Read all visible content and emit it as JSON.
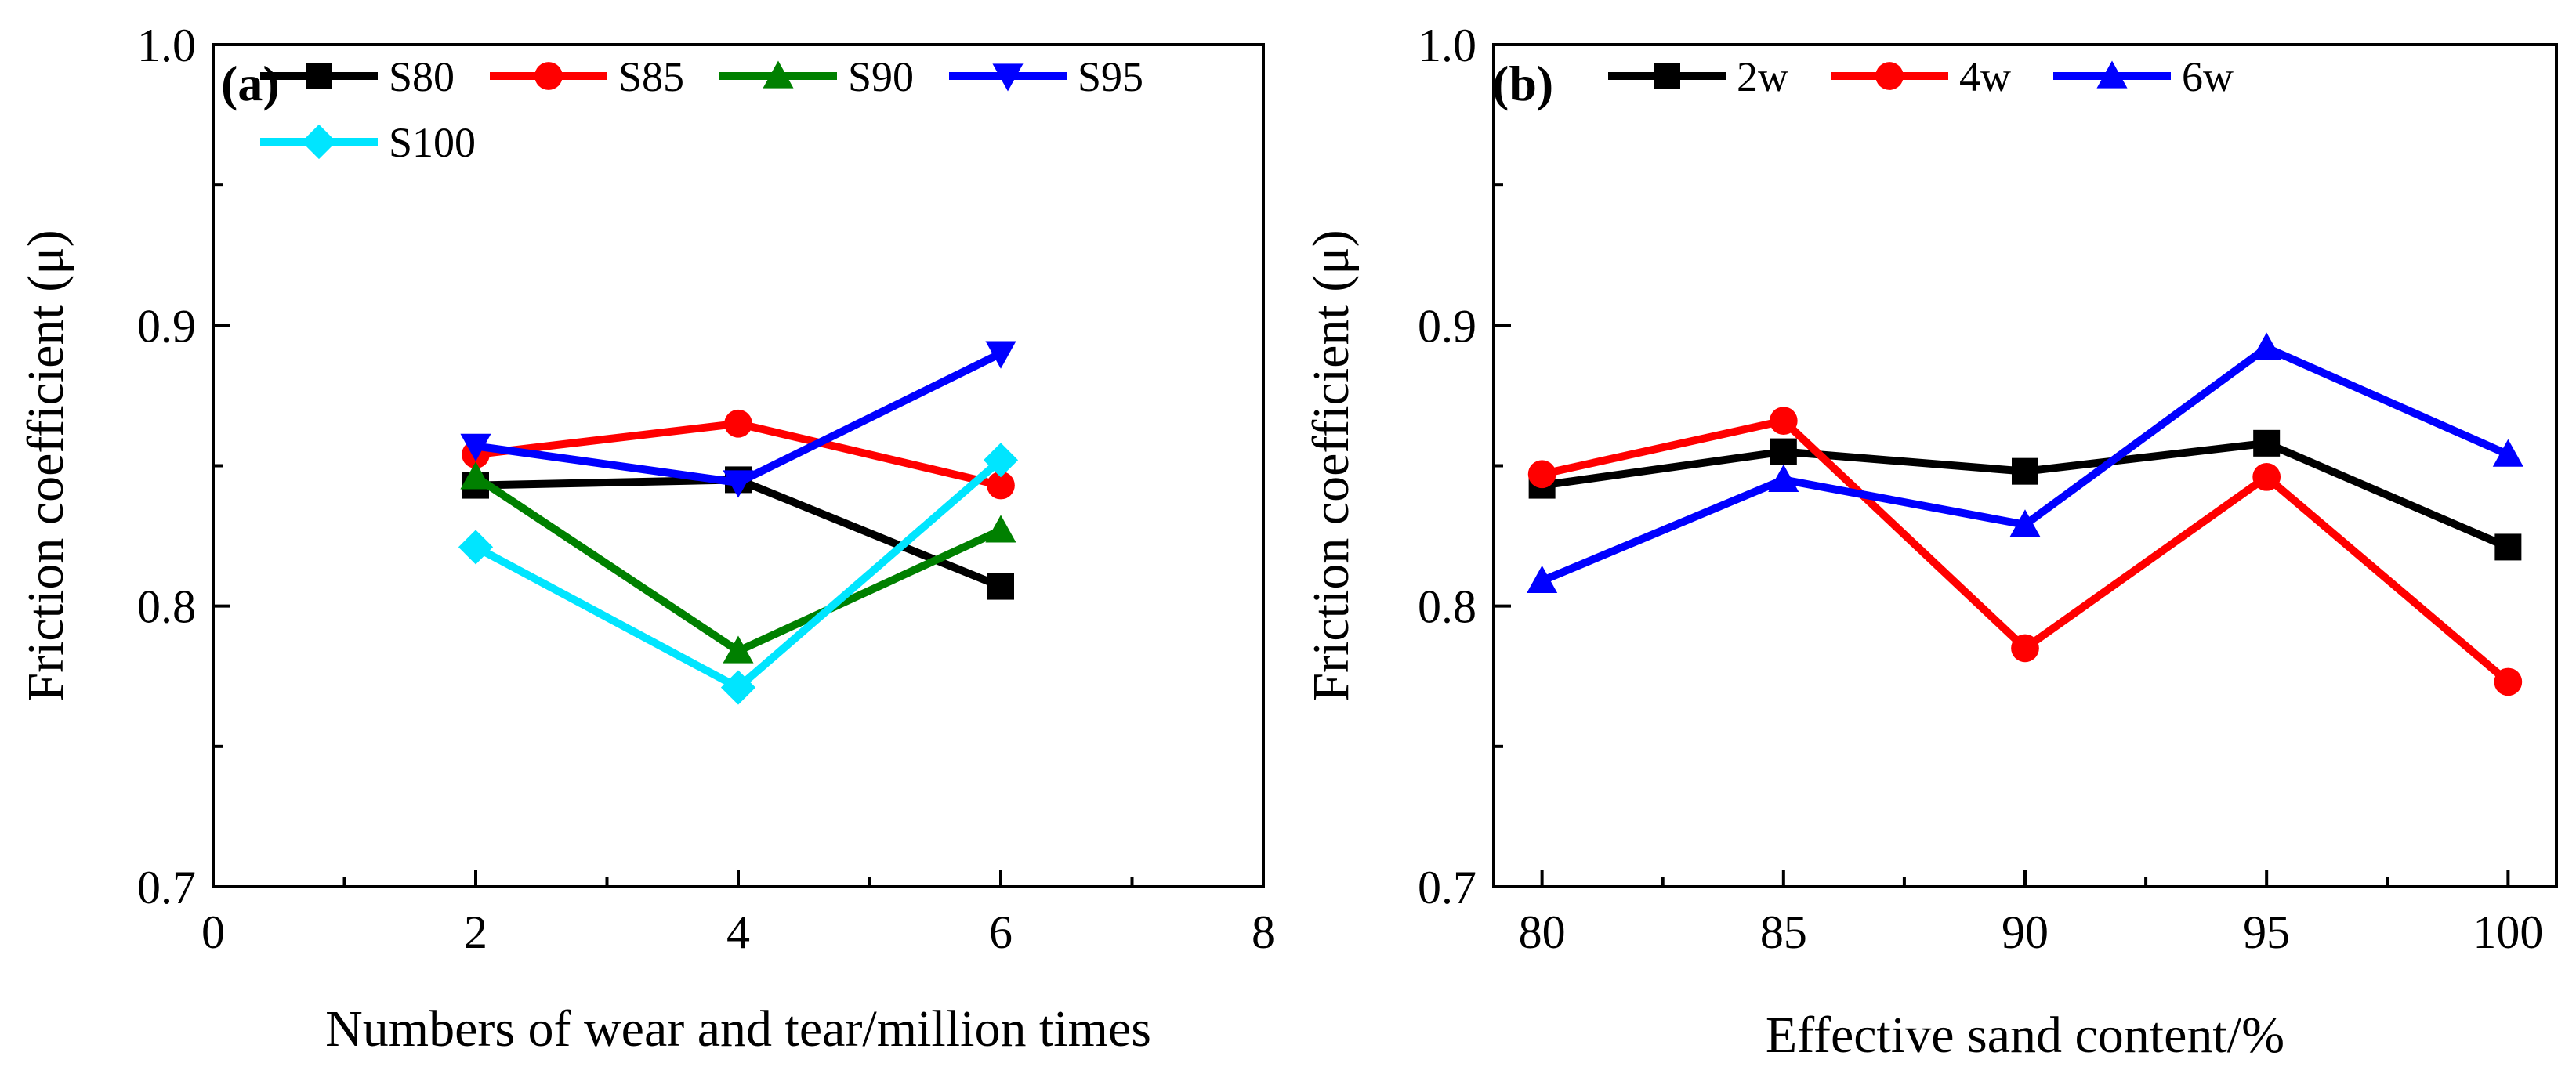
{
  "chart_data": [
    {
      "type": "line",
      "panel_label": "(a)",
      "xlabel": "Numbers of wear and tear/million times",
      "ylabel": "Friction coefficient (μ)",
      "xlim": [
        0,
        8
      ],
      "ylim": [
        0.7,
        1.0
      ],
      "xticks": [
        0,
        2,
        4,
        6,
        8
      ],
      "xtick_labels": [
        "0",
        "2",
        "4",
        "6",
        "8"
      ],
      "yticks": [
        0.7,
        0.8,
        0.9,
        1.0
      ],
      "ytick_labels": [
        "0.7",
        "0.8",
        "0.9",
        "1.0"
      ],
      "legend_position": "top-left",
      "x": [
        2,
        4,
        6
      ],
      "series": [
        {
          "name": "S80",
          "color": "#000000",
          "marker": "square",
          "values": [
            0.843,
            0.845,
            0.807
          ]
        },
        {
          "name": "S85",
          "color": "#ff0000",
          "marker": "circle",
          "values": [
            0.854,
            0.865,
            0.843
          ]
        },
        {
          "name": "S90",
          "color": "#008000",
          "marker": "triangle-up",
          "values": [
            0.846,
            0.784,
            0.827
          ]
        },
        {
          "name": "S95",
          "color": "#0000ff",
          "marker": "triangle-down",
          "values": [
            0.857,
            0.844,
            0.89
          ]
        },
        {
          "name": "S100",
          "color": "#00e5ff",
          "marker": "diamond",
          "values": [
            0.821,
            0.771,
            0.852
          ]
        }
      ]
    },
    {
      "type": "line",
      "panel_label": "(b)",
      "xlabel": "Effective sand content/%",
      "ylabel": "Friction coefficient (μ)",
      "xlim": [
        79,
        101
      ],
      "ylim": [
        0.7,
        1.0
      ],
      "xticks": [
        80,
        85,
        90,
        95,
        100
      ],
      "xtick_labels": [
        "80",
        "85",
        "90",
        "95",
        "100"
      ],
      "yticks": [
        0.7,
        0.8,
        0.9,
        1.0
      ],
      "ytick_labels": [
        "0.7",
        "0.8",
        "0.9",
        "1.0"
      ],
      "legend_position": "top-left",
      "x": [
        80,
        85,
        90,
        95,
        100
      ],
      "series": [
        {
          "name": "2w",
          "color": "#000000",
          "marker": "square",
          "values": [
            0.843,
            0.855,
            0.848,
            0.858,
            0.821
          ]
        },
        {
          "name": "4w",
          "color": "#ff0000",
          "marker": "circle",
          "values": [
            0.847,
            0.866,
            0.785,
            0.846,
            0.773
          ]
        },
        {
          "name": "6w",
          "color": "#0000ff",
          "marker": "triangle-up",
          "values": [
            0.809,
            0.845,
            0.829,
            0.892,
            0.854
          ]
        }
      ]
    }
  ]
}
